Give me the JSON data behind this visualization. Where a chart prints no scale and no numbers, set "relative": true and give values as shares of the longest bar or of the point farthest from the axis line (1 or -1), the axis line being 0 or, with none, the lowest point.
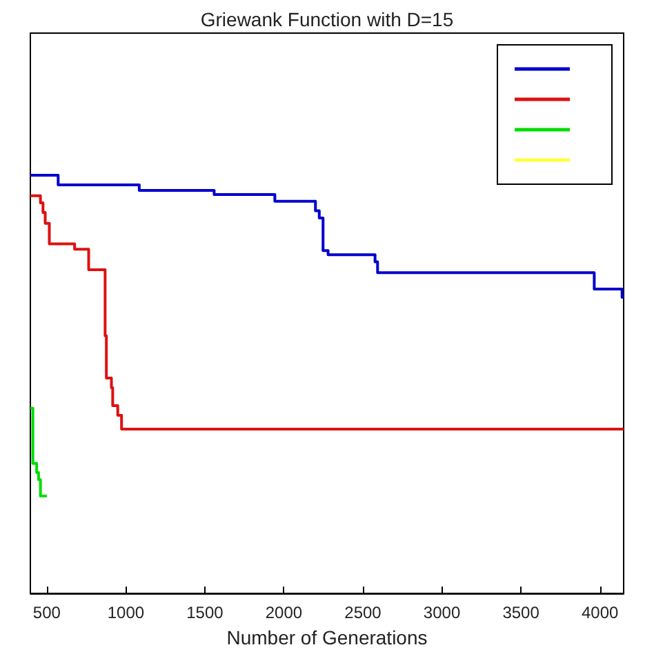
{
  "chart_data": {
    "type": "step",
    "title": "Griewank Function with D=15",
    "xlabel": "Number of Generations",
    "relative": true,
    "xlim": [
      396,
      4150
    ],
    "xticks": [
      500,
      1000,
      1500,
      2000,
      2500,
      3000,
      3500,
      4000
    ],
    "grid": false,
    "series": [
      {
        "color": "#0000cc",
        "x": [
          396,
          572,
          1085,
          1559,
          1943,
          2200,
          2224,
          2248,
          2280,
          2577,
          2593,
          3964,
          4140,
          4150
        ],
        "values": [
          1.0,
          0.977,
          0.964,
          0.954,
          0.938,
          0.915,
          0.898,
          0.82,
          0.81,
          0.793,
          0.767,
          0.728,
          0.708,
          0.708
        ]
      },
      {
        "color": "#dd1111",
        "x": [
          396,
          460,
          476,
          490,
          516,
          676,
          765,
          869,
          877,
          909,
          917,
          949,
          973,
          4150
        ],
        "values": [
          0.951,
          0.934,
          0.911,
          0.885,
          0.836,
          0.823,
          0.774,
          0.616,
          0.515,
          0.492,
          0.449,
          0.426,
          0.393,
          0.393
        ]
      },
      {
        "color": "#00dd00",
        "x": [
          396,
          412,
          436,
          448,
          460,
          500
        ],
        "values": [
          0.443,
          0.311,
          0.289,
          0.272,
          0.233,
          0.233
        ]
      },
      {
        "color": "#ffff44"
      }
    ]
  }
}
